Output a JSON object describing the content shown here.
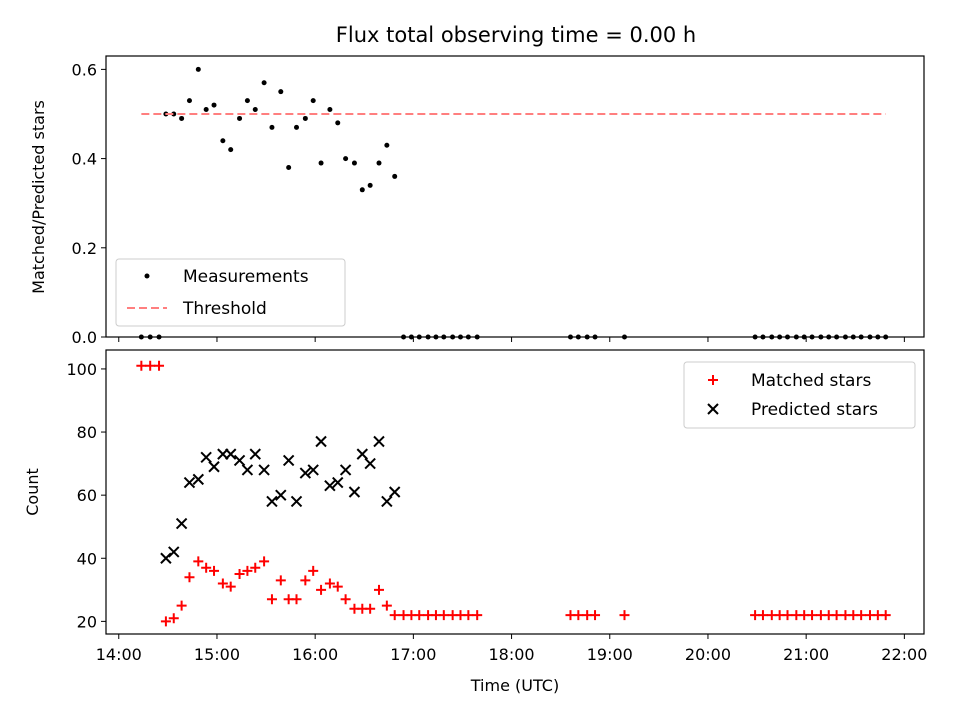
{
  "chart_data": {
    "title": "Flux total observing time = 0.00 h",
    "xlabel": "Time (UTC)",
    "x_ticks": [
      "14:00",
      "15:00",
      "16:00",
      "17:00",
      "18:00",
      "19:00",
      "20:00",
      "21:00",
      "22:00"
    ],
    "xlim_hours": [
      13.87,
      22.2
    ],
    "panels": [
      {
        "type": "scatter",
        "ylabel": "Matched/Predicted stars",
        "ylim": [
          0,
          0.63
        ],
        "y_ticks": [
          "0.0",
          "0.2",
          "0.4",
          "0.6"
        ],
        "legend_location": "lower-left",
        "series": [
          {
            "name": "Measurements",
            "marker": "dot",
            "color": "#000000",
            "points": [
              [
                14.23,
                0.0
              ],
              [
                14.32,
                0.0
              ],
              [
                14.41,
                0.0
              ],
              [
                14.48,
                0.5
              ],
              [
                14.56,
                0.5
              ],
              [
                14.64,
                0.49
              ],
              [
                14.72,
                0.53
              ],
              [
                14.81,
                0.6
              ],
              [
                14.89,
                0.51
              ],
              [
                14.97,
                0.52
              ],
              [
                15.06,
                0.44
              ],
              [
                15.14,
                0.42
              ],
              [
                15.23,
                0.49
              ],
              [
                15.31,
                0.53
              ],
              [
                15.39,
                0.51
              ],
              [
                15.48,
                0.57
              ],
              [
                15.56,
                0.47
              ],
              [
                15.65,
                0.55
              ],
              [
                15.73,
                0.38
              ],
              [
                15.81,
                0.47
              ],
              [
                15.9,
                0.49
              ],
              [
                15.98,
                0.53
              ],
              [
                16.06,
                0.39
              ],
              [
                16.15,
                0.51
              ],
              [
                16.23,
                0.48
              ],
              [
                16.31,
                0.4
              ],
              [
                16.4,
                0.39
              ],
              [
                16.48,
                0.33
              ],
              [
                16.56,
                0.34
              ],
              [
                16.65,
                0.39
              ],
              [
                16.73,
                0.43
              ],
              [
                16.81,
                0.36
              ],
              [
                16.9,
                0.0
              ],
              [
                16.98,
                0.0
              ],
              [
                17.06,
                0.0
              ],
              [
                17.15,
                0.0
              ],
              [
                17.23,
                0.0
              ],
              [
                17.31,
                0.0
              ],
              [
                17.4,
                0.0
              ],
              [
                17.48,
                0.0
              ],
              [
                17.56,
                0.0
              ],
              [
                17.65,
                0.0
              ],
              [
                18.6,
                0.0
              ],
              [
                18.68,
                0.0
              ],
              [
                18.77,
                0.0
              ],
              [
                18.85,
                0.0
              ],
              [
                19.15,
                0.0
              ],
              [
                20.48,
                0.0
              ],
              [
                20.56,
                0.0
              ],
              [
                20.65,
                0.0
              ],
              [
                20.73,
                0.0
              ],
              [
                20.81,
                0.0
              ],
              [
                20.9,
                0.0
              ],
              [
                20.98,
                0.0
              ],
              [
                21.06,
                0.0
              ],
              [
                21.15,
                0.0
              ],
              [
                21.23,
                0.0
              ],
              [
                21.31,
                0.0
              ],
              [
                21.4,
                0.0
              ],
              [
                21.48,
                0.0
              ],
              [
                21.56,
                0.0
              ],
              [
                21.65,
                0.0
              ],
              [
                21.73,
                0.0
              ],
              [
                21.81,
                0.0
              ]
            ]
          },
          {
            "name": "Threshold",
            "type": "line",
            "style": "dashed",
            "color": "#ff7f7f",
            "points": [
              [
                14.23,
                0.5
              ],
              [
                21.81,
                0.5
              ]
            ]
          }
        ]
      },
      {
        "type": "scatter",
        "ylabel": "Count",
        "ylim": [
          16,
          106
        ],
        "y_ticks": [
          "20",
          "40",
          "60",
          "80",
          "100"
        ],
        "legend_location": "upper-right",
        "series": [
          {
            "name": "Matched stars",
            "marker": "plus",
            "color": "#ff0000",
            "points": [
              [
                14.23,
                101
              ],
              [
                14.32,
                101
              ],
              [
                14.41,
                101
              ],
              [
                14.48,
                20
              ],
              [
                14.56,
                21
              ],
              [
                14.64,
                25
              ],
              [
                14.72,
                34
              ],
              [
                14.81,
                39
              ],
              [
                14.89,
                37
              ],
              [
                14.97,
                36
              ],
              [
                15.06,
                32
              ],
              [
                15.14,
                31
              ],
              [
                15.23,
                35
              ],
              [
                15.31,
                36
              ],
              [
                15.39,
                37
              ],
              [
                15.48,
                39
              ],
              [
                15.56,
                27
              ],
              [
                15.65,
                33
              ],
              [
                15.73,
                27
              ],
              [
                15.81,
                27
              ],
              [
                15.9,
                33
              ],
              [
                15.98,
                36
              ],
              [
                16.06,
                30
              ],
              [
                16.15,
                32
              ],
              [
                16.23,
                31
              ],
              [
                16.31,
                27
              ],
              [
                16.4,
                24
              ],
              [
                16.48,
                24
              ],
              [
                16.56,
                24
              ],
              [
                16.65,
                30
              ],
              [
                16.73,
                25
              ],
              [
                16.81,
                22
              ],
              [
                16.9,
                22
              ],
              [
                16.98,
                22
              ],
              [
                17.06,
                22
              ],
              [
                17.15,
                22
              ],
              [
                17.23,
                22
              ],
              [
                17.31,
                22
              ],
              [
                17.4,
                22
              ],
              [
                17.48,
                22
              ],
              [
                17.56,
                22
              ],
              [
                17.65,
                22
              ],
              [
                18.6,
                22
              ],
              [
                18.68,
                22
              ],
              [
                18.77,
                22
              ],
              [
                18.85,
                22
              ],
              [
                19.15,
                22
              ],
              [
                20.48,
                22
              ],
              [
                20.56,
                22
              ],
              [
                20.65,
                22
              ],
              [
                20.73,
                22
              ],
              [
                20.81,
                22
              ],
              [
                20.9,
                22
              ],
              [
                20.98,
                22
              ],
              [
                21.06,
                22
              ],
              [
                21.15,
                22
              ],
              [
                21.23,
                22
              ],
              [
                21.31,
                22
              ],
              [
                21.4,
                22
              ],
              [
                21.48,
                22
              ],
              [
                21.56,
                22
              ],
              [
                21.65,
                22
              ],
              [
                21.73,
                22
              ],
              [
                21.81,
                22
              ]
            ]
          },
          {
            "name": "Predicted stars",
            "marker": "x",
            "color": "#000000",
            "points": [
              [
                14.48,
                40
              ],
              [
                14.56,
                42
              ],
              [
                14.64,
                51
              ],
              [
                14.72,
                64
              ],
              [
                14.81,
                65
              ],
              [
                14.89,
                72
              ],
              [
                14.97,
                69
              ],
              [
                15.06,
                73
              ],
              [
                15.14,
                73
              ],
              [
                15.23,
                71
              ],
              [
                15.31,
                68
              ],
              [
                15.39,
                73
              ],
              [
                15.48,
                68
              ],
              [
                15.56,
                58
              ],
              [
                15.65,
                60
              ],
              [
                15.73,
                71
              ],
              [
                15.81,
                58
              ],
              [
                15.9,
                67
              ],
              [
                15.98,
                68
              ],
              [
                16.06,
                77
              ],
              [
                16.15,
                63
              ],
              [
                16.23,
                64
              ],
              [
                16.31,
                68
              ],
              [
                16.4,
                61
              ],
              [
                16.48,
                73
              ],
              [
                16.56,
                70
              ],
              [
                16.65,
                77
              ],
              [
                16.73,
                58
              ],
              [
                16.81,
                61
              ]
            ]
          }
        ]
      }
    ]
  }
}
